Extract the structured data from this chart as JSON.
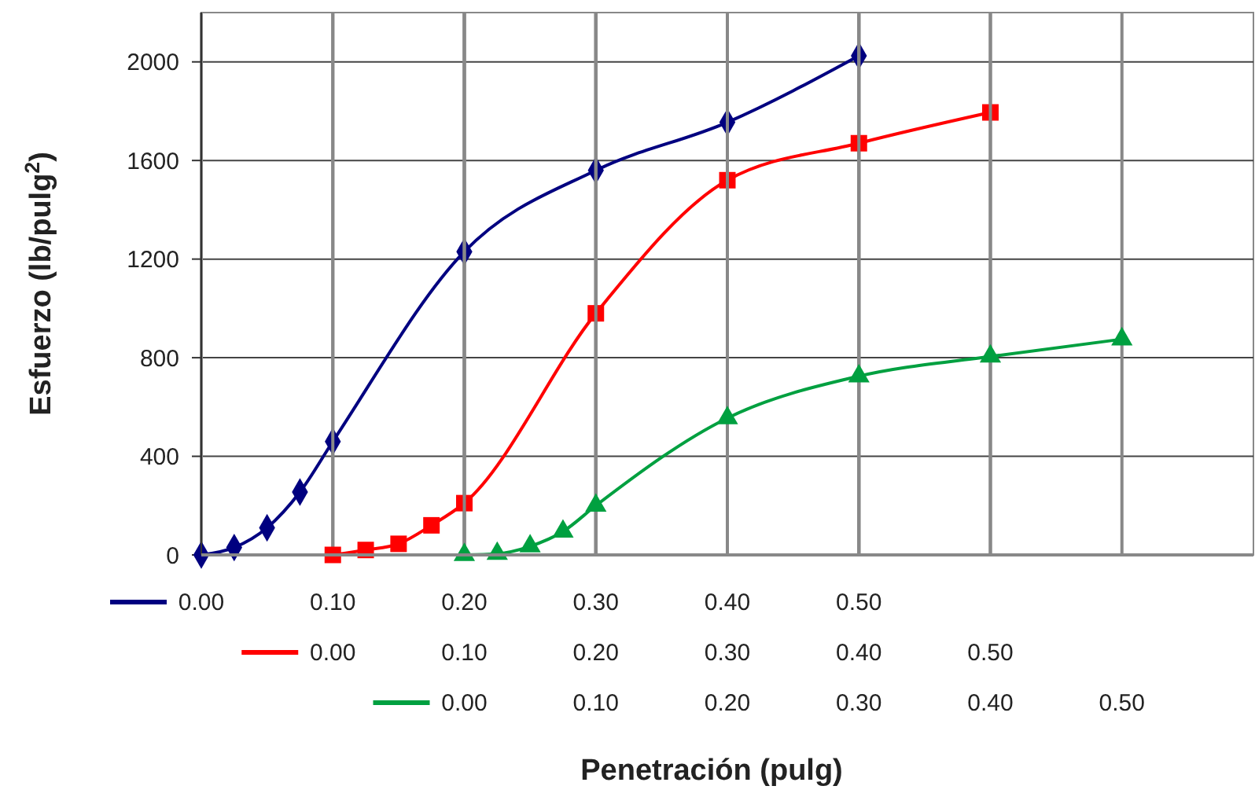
{
  "chart_data": [
    {
      "type": "line",
      "xlabel": "Penetración (pulg)",
      "ylabel": "Esfuerzo (lb/pulg$^{2}$)",
      "ylim": [
        0,
        2200
      ],
      "yticks": [
        0,
        400,
        800,
        1200,
        1600,
        2000
      ],
      "xlim": [
        0,
        0.8
      ],
      "xticks": [
        {
          "value": 0,
          "label": "0.00"
        },
        {
          "value": 0.1,
          "label": "0.10"
        },
        {
          "value": 0.2,
          "label": "0.20"
        },
        {
          "value": 0.3,
          "label": "0.30"
        },
        {
          "value": 0.4,
          "label": "0.40"
        },
        {
          "value": 0.5,
          "label": "0.50"
        }
      ],
      "grid": true,
      "marker": "diamond",
      "line_style": "solid",
      "series": [
        {
          "color": "#000080",
          "x": [
            0,
            0.025,
            0.05,
            0.075,
            0.1,
            0.2,
            0.3,
            0.4,
            0.5
          ],
          "values": [
            0,
            30,
            110,
            255,
            460,
            1230,
            1560,
            1755,
            2025
          ]
        }
      ]
    },
    {
      "type": "line",
      "ylim": [
        0,
        2200
      ],
      "xlim": [
        -0.1,
        0.7
      ],
      "xticks": [
        {
          "value": 0,
          "label": "0.00"
        },
        {
          "value": 0.1,
          "label": "0.10"
        },
        {
          "value": 0.2,
          "label": "0.20"
        },
        {
          "value": 0.3,
          "label": "0.30"
        },
        {
          "value": 0.4,
          "label": "0.40"
        },
        {
          "value": 0.5,
          "label": "0.50"
        }
      ],
      "grid": "x",
      "tick_labels": "x",
      "marker": "square",
      "line_style": "solid",
      "series": [
        {
          "color": "#ff0000",
          "x": [
            0,
            0.025,
            0.05,
            0.075,
            0.1,
            0.2,
            0.3,
            0.4,
            0.5
          ],
          "values": [
            0,
            20,
            45,
            120,
            210,
            980,
            1520,
            1670,
            1795
          ]
        }
      ]
    },
    {
      "type": "line",
      "ylim": [
        0,
        2200
      ],
      "xlim": [
        -0.2,
        0.6
      ],
      "xticks": [
        {
          "value": 0,
          "label": "0.00"
        },
        {
          "value": 0.1,
          "label": "0.10"
        },
        {
          "value": 0.2,
          "label": "0.20"
        },
        {
          "value": 0.3,
          "label": "0.30"
        },
        {
          "value": 0.4,
          "label": "0.40"
        },
        {
          "value": 0.5,
          "label": "0.50"
        }
      ],
      "grid": "x",
      "tick_labels": "x",
      "marker": "triangle",
      "line_style": "solid",
      "series": [
        {
          "color": "#00a040",
          "x": [
            0,
            0.025,
            0.05,
            0.075,
            0.1,
            0.2,
            0.3,
            0.4,
            0.5
          ],
          "values": [
            0,
            5,
            35,
            95,
            200,
            555,
            725,
            805,
            875
          ]
        }
      ]
    }
  ]
}
